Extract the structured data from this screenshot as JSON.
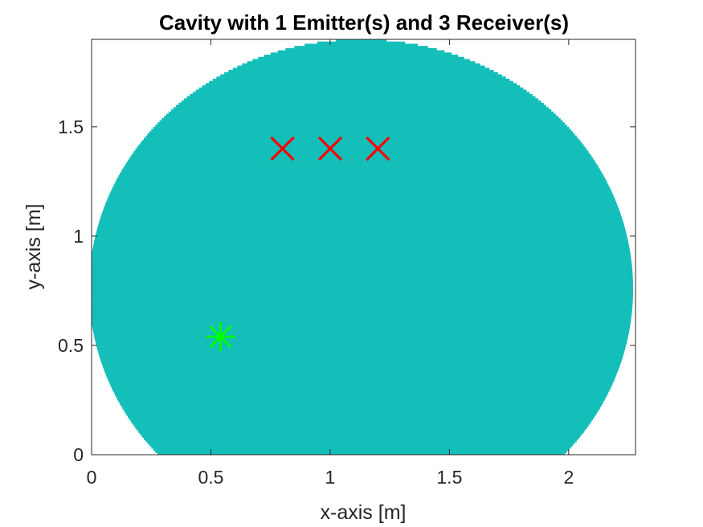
{
  "chart_data": {
    "type": "scatter",
    "title": "Cavity with 1 Emitter(s) and 3 Receiver(s)",
    "xlabel": "x-axis [m]",
    "ylabel": "y-axis [m]",
    "xlim": [
      0,
      2.28
    ],
    "ylim": [
      0,
      1.9
    ],
    "xticks": [
      {
        "value": 0,
        "label": "0"
      },
      {
        "value": 0.5,
        "label": "0.5"
      },
      {
        "value": 1,
        "label": "1"
      },
      {
        "value": 1.5,
        "label": "1.5"
      },
      {
        "value": 2,
        "label": "2"
      }
    ],
    "yticks": [
      {
        "value": 0,
        "label": "0"
      },
      {
        "value": 0.5,
        "label": "0.5"
      },
      {
        "value": 1,
        "label": "1"
      },
      {
        "value": 1.5,
        "label": "1.5"
      }
    ],
    "grid": false,
    "legend": "none",
    "cavity": {
      "shape": "circle",
      "center": [
        1.13,
        0.76
      ],
      "radius": 1.14,
      "color": "#14BEB9"
    },
    "series": [
      {
        "marker": "asterisk",
        "color": "#00FF00",
        "points": [
          [
            0.54,
            0.54
          ]
        ]
      },
      {
        "marker": "x",
        "color": "#FF0000",
        "points": [
          [
            0.8,
            1.4
          ],
          [
            1.0,
            1.4
          ],
          [
            1.2,
            1.4
          ]
        ]
      }
    ]
  }
}
